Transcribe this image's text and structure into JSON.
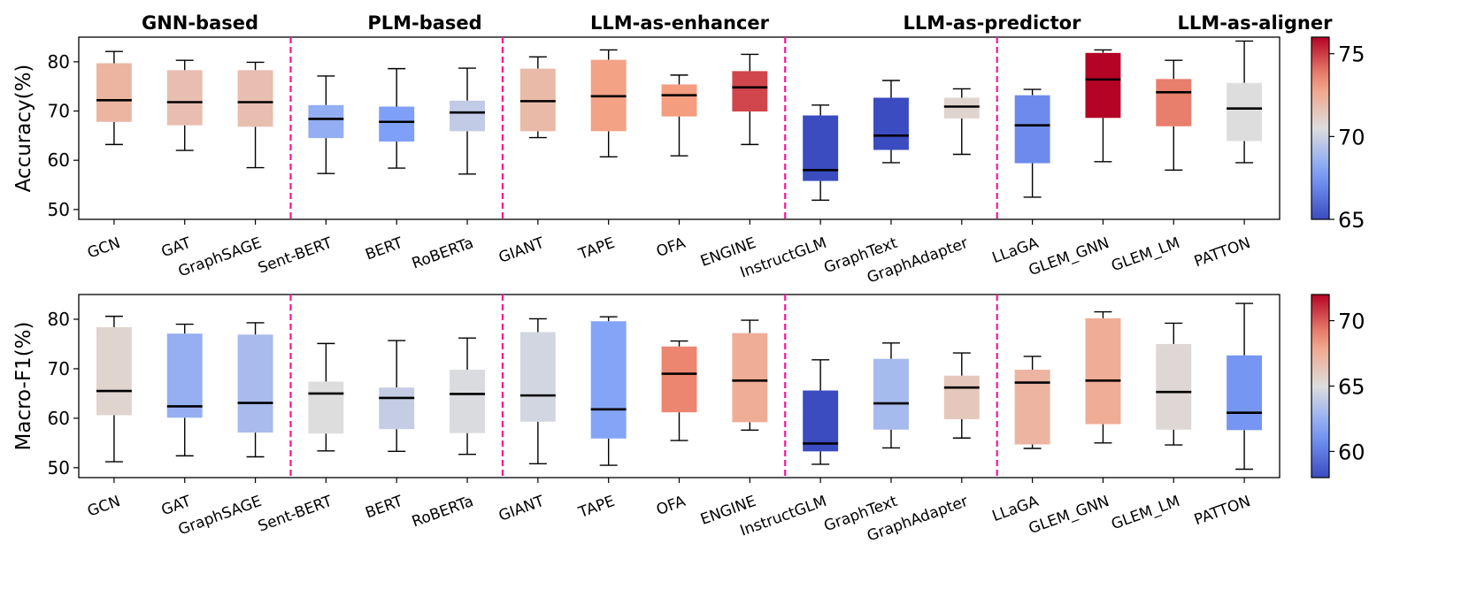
{
  "group_titles": [
    "GNN-based",
    "PLM-based",
    "LLM-as-enhancer",
    "LLM-as-predictor",
    "LLM-as-aligner"
  ],
  "chart_data": [
    {
      "type": "box",
      "ylabel": "Accuracy(%)",
      "ylim": [
        48,
        85
      ],
      "yticks": [
        50,
        60,
        70,
        80
      ],
      "group_boundaries_after_index": [
        2,
        5,
        9,
        12
      ],
      "colorbar": {
        "min": 65,
        "max": 76,
        "ticks": [
          65,
          70,
          75
        ]
      },
      "categories": [
        "GCN",
        "GAT",
        "GraphSAGE",
        "Sent-BERT",
        "BERT",
        "RoBERTa",
        "GIANT",
        "TAPE",
        "OFA",
        "ENGINE",
        "InstructGLM",
        "GraphText",
        "GraphAdapter",
        "LLaGA",
        "GLEM_GNN",
        "GLEM_LM",
        "PATTON"
      ],
      "boxes": [
        {
          "min": 63.2,
          "q1": 67.8,
          "median": 72.2,
          "q3": 79.7,
          "max": 82.1
        },
        {
          "min": 62.0,
          "q1": 67.1,
          "median": 71.8,
          "q3": 78.3,
          "max": 80.3
        },
        {
          "min": 58.5,
          "q1": 66.8,
          "median": 71.8,
          "q3": 78.3,
          "max": 79.9
        },
        {
          "min": 57.3,
          "q1": 64.5,
          "median": 68.4,
          "q3": 71.2,
          "max": 77.1
        },
        {
          "min": 58.4,
          "q1": 63.8,
          "median": 67.8,
          "q3": 70.9,
          "max": 78.6
        },
        {
          "min": 57.2,
          "q1": 65.9,
          "median": 69.7,
          "q3": 72.1,
          "max": 78.7
        },
        {
          "min": 64.6,
          "q1": 65.9,
          "median": 72.0,
          "q3": 78.6,
          "max": 81.0
        },
        {
          "min": 60.7,
          "q1": 65.9,
          "median": 73.0,
          "q3": 80.4,
          "max": 82.4
        },
        {
          "min": 60.9,
          "q1": 68.9,
          "median": 73.2,
          "q3": 75.4,
          "max": 77.3
        },
        {
          "min": 63.2,
          "q1": 69.9,
          "median": 74.8,
          "q3": 78.1,
          "max": 81.5
        },
        {
          "min": 51.9,
          "q1": 55.8,
          "median": 58.0,
          "q3": 69.1,
          "max": 71.2
        },
        {
          "min": 59.5,
          "q1": 62.1,
          "median": 65.0,
          "q3": 72.7,
          "max": 76.2
        },
        {
          "min": 61.2,
          "q1": 68.5,
          "median": 70.9,
          "q3": 72.7,
          "max": 74.5
        },
        {
          "min": 52.5,
          "q1": 59.4,
          "median": 67.1,
          "q3": 73.2,
          "max": 74.4
        },
        {
          "min": 59.7,
          "q1": 68.6,
          "median": 76.4,
          "q3": 81.8,
          "max": 82.4
        },
        {
          "min": 58.0,
          "q1": 66.9,
          "median": 73.8,
          "q3": 76.5,
          "max": 80.3
        },
        {
          "min": 59.5,
          "q1": 63.9,
          "median": 70.5,
          "q3": 75.7,
          "max": 84.2
        }
      ]
    },
    {
      "type": "box",
      "ylabel": "Macro-F1(%)",
      "ylim": [
        48,
        85
      ],
      "yticks": [
        50,
        60,
        70,
        80
      ],
      "group_boundaries_after_index": [
        2,
        5,
        9,
        12
      ],
      "colorbar": {
        "min": 58,
        "max": 72,
        "ticks": [
          60,
          65,
          70
        ]
      },
      "categories": [
        "GCN",
        "GAT",
        "GraphSAGE",
        "Sent-BERT",
        "BERT",
        "RoBERTa",
        "GIANT",
        "TAPE",
        "OFA",
        "ENGINE",
        "InstructGLM",
        "GraphText",
        "GraphAdapter",
        "LLaGA",
        "GLEM_GNN",
        "GLEM_LM",
        "PATTON"
      ],
      "boxes": [
        {
          "min": 51.2,
          "q1": 60.6,
          "median": 65.5,
          "q3": 78.4,
          "max": 80.6
        },
        {
          "min": 52.4,
          "q1": 60.1,
          "median": 62.4,
          "q3": 77.1,
          "max": 79.0
        },
        {
          "min": 52.2,
          "q1": 57.1,
          "median": 63.1,
          "q3": 76.9,
          "max": 79.3
        },
        {
          "min": 53.4,
          "q1": 56.9,
          "median": 65.0,
          "q3": 67.4,
          "max": 75.1
        },
        {
          "min": 53.3,
          "q1": 57.8,
          "median": 64.1,
          "q3": 66.2,
          "max": 75.7
        },
        {
          "min": 52.7,
          "q1": 57.0,
          "median": 64.9,
          "q3": 69.8,
          "max": 76.2
        },
        {
          "min": 50.8,
          "q1": 59.3,
          "median": 64.6,
          "q3": 77.4,
          "max": 80.1
        },
        {
          "min": 50.5,
          "q1": 55.9,
          "median": 61.8,
          "q3": 79.6,
          "max": 80.5
        },
        {
          "min": 55.5,
          "q1": 61.2,
          "median": 69.0,
          "q3": 74.5,
          "max": 75.6
        },
        {
          "min": 57.6,
          "q1": 59.2,
          "median": 67.6,
          "q3": 77.2,
          "max": 79.8
        },
        {
          "min": 50.7,
          "q1": 53.3,
          "median": 54.9,
          "q3": 65.6,
          "max": 71.8
        },
        {
          "min": 54.0,
          "q1": 57.7,
          "median": 63.0,
          "q3": 72.0,
          "max": 75.2
        },
        {
          "min": 56.0,
          "q1": 59.8,
          "median": 66.2,
          "q3": 68.6,
          "max": 73.2
        },
        {
          "min": 53.9,
          "q1": 54.7,
          "median": 67.2,
          "q3": 69.8,
          "max": 72.5
        },
        {
          "min": 55.0,
          "q1": 58.8,
          "median": 67.6,
          "q3": 80.2,
          "max": 81.5
        },
        {
          "min": 54.6,
          "q1": 57.7,
          "median": 65.3,
          "q3": 75.0,
          "max": 79.2
        },
        {
          "min": 49.7,
          "q1": 57.6,
          "median": 61.1,
          "q3": 72.7,
          "max": 83.2
        }
      ]
    }
  ],
  "colors": {
    "divider": "#ff1493",
    "median": "#000000",
    "whisker": "#000000",
    "axis": "#000000",
    "colormap": "coolwarm"
  }
}
